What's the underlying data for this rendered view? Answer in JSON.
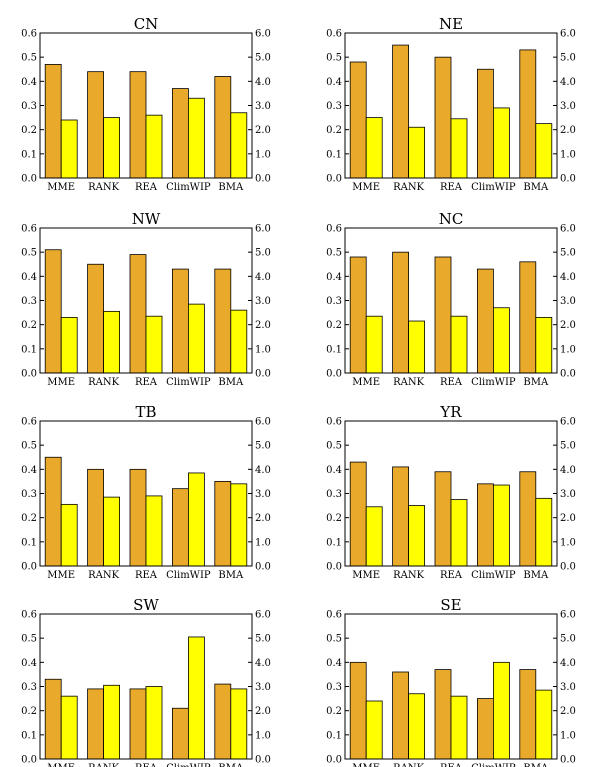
{
  "colors": {
    "bar_a": "#E9A92A",
    "bar_b": "#FFFF00"
  },
  "chart_data": [
    {
      "type": "bar",
      "title": "CN",
      "categories": [
        "MME",
        "RANK",
        "REA",
        "ClimWIP",
        "BMA"
      ],
      "series": [
        {
          "axis": "left",
          "values": [
            0.47,
            0.44,
            0.44,
            0.37,
            0.42
          ]
        },
        {
          "axis": "right",
          "values": [
            2.4,
            2.5,
            2.6,
            3.3,
            2.7
          ]
        }
      ],
      "ylim": [
        0,
        0.6
      ],
      "y2lim": [
        0,
        6.0
      ],
      "yticks": [
        "0.0",
        "0.1",
        "0.2",
        "0.3",
        "0.4",
        "0.5",
        "0.6"
      ],
      "y2ticks": [
        "0.0",
        "1.0",
        "2.0",
        "3.0",
        "4.0",
        "5.0",
        "6.0"
      ]
    },
    {
      "type": "bar",
      "title": "NE",
      "categories": [
        "MME",
        "RANK",
        "REA",
        "ClimWIP",
        "BMA"
      ],
      "series": [
        {
          "axis": "left",
          "values": [
            0.48,
            0.55,
            0.5,
            0.45,
            0.53
          ]
        },
        {
          "axis": "right",
          "values": [
            2.5,
            2.1,
            2.45,
            2.9,
            2.25
          ]
        }
      ],
      "ylim": [
        0,
        0.6
      ],
      "y2lim": [
        0,
        6.0
      ],
      "yticks": [
        "0.0",
        "0.1",
        "0.2",
        "0.3",
        "0.4",
        "0.5",
        "0.6"
      ],
      "y2ticks": [
        "0.0",
        "1.0",
        "2.0",
        "3.0",
        "4.0",
        "5.0",
        "6.0"
      ]
    },
    {
      "type": "bar",
      "title": "NW",
      "categories": [
        "MME",
        "RANK",
        "REA",
        "ClimWIP",
        "BMA"
      ],
      "series": [
        {
          "axis": "left",
          "values": [
            0.51,
            0.45,
            0.49,
            0.43,
            0.43
          ]
        },
        {
          "axis": "right",
          "values": [
            2.3,
            2.55,
            2.35,
            2.85,
            2.6
          ]
        }
      ],
      "ylim": [
        0,
        0.6
      ],
      "y2lim": [
        0,
        6.0
      ],
      "yticks": [
        "0.0",
        "0.1",
        "0.2",
        "0.3",
        "0.4",
        "0.5",
        "0.6"
      ],
      "y2ticks": [
        "0.0",
        "1.0",
        "2.0",
        "3.0",
        "4.0",
        "5.0",
        "6.0"
      ]
    },
    {
      "type": "bar",
      "title": "NC",
      "categories": [
        "MME",
        "RANK",
        "REA",
        "ClimWIP",
        "BMA"
      ],
      "series": [
        {
          "axis": "left",
          "values": [
            0.48,
            0.5,
            0.48,
            0.43,
            0.46
          ]
        },
        {
          "axis": "right",
          "values": [
            2.35,
            2.15,
            2.35,
            2.7,
            2.3
          ]
        }
      ],
      "ylim": [
        0,
        0.6
      ],
      "y2lim": [
        0,
        6.0
      ],
      "yticks": [
        "0.0",
        "0.1",
        "0.2",
        "0.3",
        "0.4",
        "0.5",
        "0.6"
      ],
      "y2ticks": [
        "0.0",
        "1.0",
        "2.0",
        "3.0",
        "4.0",
        "5.0",
        "6.0"
      ]
    },
    {
      "type": "bar",
      "title": "TB",
      "categories": [
        "MME",
        "RANK",
        "REA",
        "ClimWIP",
        "BMA"
      ],
      "series": [
        {
          "axis": "left",
          "values": [
            0.45,
            0.4,
            0.4,
            0.32,
            0.35
          ]
        },
        {
          "axis": "right",
          "values": [
            2.55,
            2.85,
            2.9,
            3.85,
            3.4
          ]
        }
      ],
      "ylim": [
        0,
        0.6
      ],
      "y2lim": [
        0,
        6.0
      ],
      "yticks": [
        "0.0",
        "0.1",
        "0.2",
        "0.3",
        "0.4",
        "0.5",
        "0.6"
      ],
      "y2ticks": [
        "0.0",
        "1.0",
        "2.0",
        "3.0",
        "4.0",
        "5.0",
        "6.0"
      ]
    },
    {
      "type": "bar",
      "title": "YR",
      "categories": [
        "MME",
        "RANK",
        "REA",
        "ClimWIP",
        "BMA"
      ],
      "series": [
        {
          "axis": "left",
          "values": [
            0.43,
            0.41,
            0.39,
            0.34,
            0.39
          ]
        },
        {
          "axis": "right",
          "values": [
            2.45,
            2.5,
            2.75,
            3.35,
            2.8
          ]
        }
      ],
      "ylim": [
        0,
        0.6
      ],
      "y2lim": [
        0,
        6.0
      ],
      "yticks": [
        "0.0",
        "0.1",
        "0.2",
        "0.3",
        "0.4",
        "0.5",
        "0.6"
      ],
      "y2ticks": [
        "0.0",
        "1.0",
        "2.0",
        "3.0",
        "4.0",
        "5.0",
        "6.0"
      ]
    },
    {
      "type": "bar",
      "title": "SW",
      "categories": [
        "MME",
        "RANK",
        "REA",
        "ClimWIP",
        "BMA"
      ],
      "series": [
        {
          "axis": "left",
          "values": [
            0.33,
            0.29,
            0.29,
            0.21,
            0.31
          ]
        },
        {
          "axis": "right",
          "values": [
            2.6,
            3.05,
            3.0,
            5.05,
            2.9
          ]
        }
      ],
      "ylim": [
        0,
        0.6
      ],
      "y2lim": [
        0,
        6.0
      ],
      "yticks": [
        "0.0",
        "0.1",
        "0.2",
        "0.3",
        "0.4",
        "0.5",
        "0.6"
      ],
      "y2ticks": [
        "0.0",
        "1.0",
        "2.0",
        "3.0",
        "4.0",
        "5.0",
        "6.0"
      ]
    },
    {
      "type": "bar",
      "title": "SE",
      "categories": [
        "MME",
        "RANK",
        "REA",
        "ClimWIP",
        "BMA"
      ],
      "series": [
        {
          "axis": "left",
          "values": [
            0.4,
            0.36,
            0.37,
            0.25,
            0.37
          ]
        },
        {
          "axis": "right",
          "values": [
            2.4,
            2.7,
            2.6,
            4.0,
            2.85
          ]
        }
      ],
      "ylim": [
        0,
        0.6
      ],
      "y2lim": [
        0,
        6.0
      ],
      "yticks": [
        "0.0",
        "0.1",
        "0.2",
        "0.3",
        "0.4",
        "0.5",
        "0.6"
      ],
      "y2ticks": [
        "0.0",
        "1.0",
        "2.0",
        "3.0",
        "4.0",
        "5.0",
        "6.0"
      ]
    }
  ]
}
